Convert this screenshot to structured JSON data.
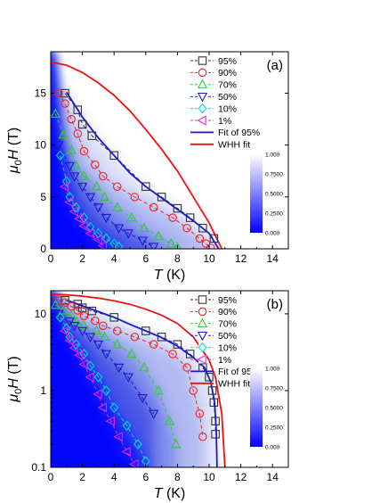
{
  "chart_data": [
    {
      "type": "scatter",
      "panel_label": "(a)",
      "xlabel": "T (K)",
      "ylabel": "μ0H (T)",
      "xlim": [
        0,
        15
      ],
      "ylim": [
        0,
        19
      ],
      "y_scale": "linear",
      "xticks": [
        "0",
        "2",
        "4",
        "6",
        "8",
        "10",
        "12",
        "14"
      ],
      "yticks": [
        "0",
        "5",
        "10",
        "15"
      ],
      "legend_position": "top-right",
      "colorbar": {
        "ticks": [
          "1.000",
          "0.7500",
          "0.5000",
          "0.2500",
          "0.000"
        ],
        "colors": [
          "#ffffff",
          "#0000ff"
        ]
      },
      "series": [
        {
          "name": "95%",
          "marker": "square",
          "color": "#333333",
          "x": [
            0.9,
            1.7,
            2.0,
            2.6,
            4.0,
            6.0,
            7.0,
            8.0,
            8.8,
            9.6,
            10.3
          ],
          "y": [
            15.0,
            13.4,
            12.0,
            10.9,
            9.0,
            6.0,
            5.0,
            3.9,
            3.0,
            2.0,
            1.0
          ]
        },
        {
          "name": "90%",
          "marker": "circle",
          "color": "#ee2222",
          "x": [
            0.5,
            0.9,
            1.3,
            1.7,
            2.1,
            2.8,
            3.3,
            4.2,
            5.3,
            6.5,
            7.7,
            8.6,
            9.4,
            9.8,
            10.1
          ],
          "y": [
            15.0,
            14.0,
            12.5,
            11.1,
            9.4,
            8.1,
            7.0,
            6.0,
            5.0,
            4.0,
            3.0,
            2.0,
            1.0,
            0.5,
            0.1
          ]
        },
        {
          "name": "70%",
          "marker": "triangle-up",
          "color": "#33cc33",
          "x": [
            0.3,
            0.8,
            1.3,
            1.6,
            2.1,
            2.9,
            3.4,
            4.2,
            5.1,
            5.9,
            6.8,
            7.6,
            8.0
          ],
          "y": [
            13.0,
            11.0,
            9.5,
            8.0,
            7.0,
            6.0,
            5.0,
            4.0,
            3.0,
            2.0,
            1.2,
            0.5,
            0.1
          ]
        },
        {
          "name": "50%",
          "marker": "triangle-down",
          "color": "#1a1acc",
          "x": [
            0.5,
            1.2,
            1.5,
            2.0,
            2.5,
            3.0,
            3.5,
            4.3,
            4.9,
            5.8,
            6.5
          ],
          "y": [
            10.0,
            8.0,
            7.0,
            6.0,
            5.0,
            4.0,
            3.0,
            2.0,
            1.5,
            0.8,
            0.2
          ]
        },
        {
          "name": "10%",
          "marker": "diamond",
          "color": "#00dddd",
          "x": [
            0.6,
            1.0,
            1.2,
            1.6,
            2.1,
            2.5,
            3.0,
            3.5,
            4.0,
            4.3
          ],
          "y": [
            9.0,
            6.5,
            5.0,
            4.0,
            3.0,
            2.1,
            1.5,
            1.0,
            0.5,
            0.2
          ]
        },
        {
          "name": "1%",
          "marker": "triangle-left",
          "color": "#ee22ee",
          "x": [
            0.9,
            1.2,
            1.5,
            1.8,
            2.1,
            2.5,
            3.0,
            3.3
          ],
          "y": [
            6.0,
            4.5,
            3.6,
            2.9,
            2.2,
            1.5,
            0.9,
            0.3
          ]
        },
        {
          "name": "Fit of 95%",
          "marker": "line",
          "color": "#1a1acc",
          "x": [
            1.0,
            2.0,
            3.0,
            4.0,
            5.0,
            6.0,
            7.0,
            8.0,
            9.0,
            10.0,
            10.6
          ],
          "y": [
            15.1,
            12.7,
            10.7,
            9.0,
            7.3,
            6.0,
            4.9,
            3.8,
            2.7,
            1.5,
            0.0
          ]
        },
        {
          "name": "WHH fit",
          "marker": "line",
          "color": "#ee1111",
          "x": [
            0.0,
            1.0,
            2.0,
            3.0,
            4.0,
            5.0,
            6.0,
            7.0,
            8.0,
            9.0,
            10.0,
            10.8
          ],
          "y": [
            18.0,
            17.7,
            17.0,
            16.0,
            14.8,
            13.3,
            11.5,
            9.6,
            7.5,
            5.0,
            2.5,
            0.0
          ]
        }
      ]
    },
    {
      "type": "scatter",
      "panel_label": "(b)",
      "xlabel": "T (K)",
      "ylabel": "μ0H (T)",
      "xlim": [
        0,
        15
      ],
      "ylim": [
        0.1,
        20
      ],
      "y_scale": "log",
      "xticks": [
        "0",
        "2",
        "4",
        "6",
        "8",
        "10",
        "12",
        "14"
      ],
      "yticks": [
        "0.1",
        "1",
        "10"
      ],
      "legend_position": "top-right",
      "colorbar": {
        "ticks": [
          "1.000",
          "0.7500",
          "0.5000",
          "0.2500",
          "0.000"
        ],
        "colors": [
          "#ffffff",
          "#0000ff"
        ]
      },
      "series": [
        {
          "name": "95%",
          "marker": "square",
          "color": "#333333",
          "x": [
            0.9,
            1.7,
            2.0,
            2.6,
            4.0,
            6.0,
            7.0,
            8.0,
            8.8,
            9.6,
            10.0,
            10.2,
            10.3,
            10.4,
            10.4
          ],
          "y": [
            15.0,
            13.4,
            12.0,
            10.9,
            9.0,
            6.0,
            5.0,
            4.0,
            3.0,
            2.0,
            1.5,
            1.0,
            0.7,
            0.4,
            0.27
          ]
        },
        {
          "name": "90%",
          "marker": "circle",
          "color": "#ee2222",
          "x": [
            0.5,
            0.9,
            1.3,
            1.7,
            2.1,
            2.8,
            3.3,
            4.2,
            5.3,
            6.5,
            7.7,
            8.6,
            9.0,
            9.4,
            9.6
          ],
          "y": [
            15.0,
            14.0,
            12.5,
            11.1,
            9.4,
            8.1,
            7.0,
            6.0,
            5.0,
            4.0,
            3.0,
            2.0,
            1.0,
            0.5,
            0.25
          ]
        },
        {
          "name": "70%",
          "marker": "triangle-up",
          "color": "#33cc33",
          "x": [
            0.3,
            0.8,
            1.3,
            1.6,
            2.1,
            2.9,
            3.4,
            4.2,
            5.1,
            5.9,
            6.8,
            7.5,
            7.9
          ],
          "y": [
            13.0,
            11.0,
            9.5,
            8.0,
            7.0,
            6.0,
            5.0,
            4.0,
            3.0,
            2.0,
            1.0,
            0.4,
            0.2
          ]
        },
        {
          "name": "50%",
          "marker": "triangle-down",
          "color": "#1a1acc",
          "x": [
            0.5,
            1.2,
            1.5,
            2.0,
            2.5,
            3.0,
            3.5,
            4.3,
            4.9,
            5.8,
            6.5
          ],
          "y": [
            10.0,
            8.0,
            7.0,
            6.0,
            5.0,
            4.0,
            3.0,
            2.0,
            1.5,
            0.8,
            0.5
          ]
        },
        {
          "name": "10%",
          "marker": "diamond",
          "color": "#00dddd",
          "x": [
            0.6,
            1.0,
            1.2,
            1.6,
            2.1,
            2.5,
            3.0,
            3.5,
            4.0,
            4.8,
            5.5,
            6.0
          ],
          "y": [
            9.0,
            6.5,
            5.0,
            4.0,
            3.0,
            2.1,
            1.5,
            1.0,
            0.6,
            0.35,
            0.2,
            0.12
          ]
        },
        {
          "name": "1%",
          "marker": "triangle-left",
          "color": "#ee22ee",
          "x": [
            0.9,
            1.2,
            1.5,
            1.8,
            2.1,
            2.5,
            3.0,
            3.3,
            3.8,
            4.3,
            4.8,
            5.3
          ],
          "y": [
            6.0,
            4.5,
            3.6,
            2.9,
            2.2,
            1.5,
            0.9,
            0.6,
            0.4,
            0.25,
            0.16,
            0.11
          ]
        },
        {
          "name": "Fit of 95%",
          "marker": "line",
          "color": "#1a1acc",
          "x": [
            1.0,
            2.0,
            3.0,
            4.0,
            5.0,
            6.0,
            7.0,
            8.0,
            9.0,
            9.7,
            10.1,
            10.35,
            10.45,
            10.5
          ],
          "y": [
            15.1,
            12.7,
            10.7,
            9.0,
            7.3,
            6.0,
            4.9,
            3.8,
            2.7,
            2.0,
            1.3,
            0.7,
            0.3,
            0.1
          ]
        },
        {
          "name": "WHH fit",
          "marker": "line",
          "color": "#ee1111",
          "x": [
            0.0,
            1.0,
            2.0,
            3.0,
            4.0,
            5.0,
            6.0,
            7.0,
            8.0,
            9.0,
            10.0,
            10.4,
            10.8,
            11.0
          ],
          "y": [
            18.0,
            17.7,
            17.0,
            16.0,
            14.8,
            13.3,
            11.5,
            9.6,
            7.5,
            5.0,
            2.5,
            1.5,
            0.5,
            0.1
          ]
        }
      ]
    }
  ]
}
